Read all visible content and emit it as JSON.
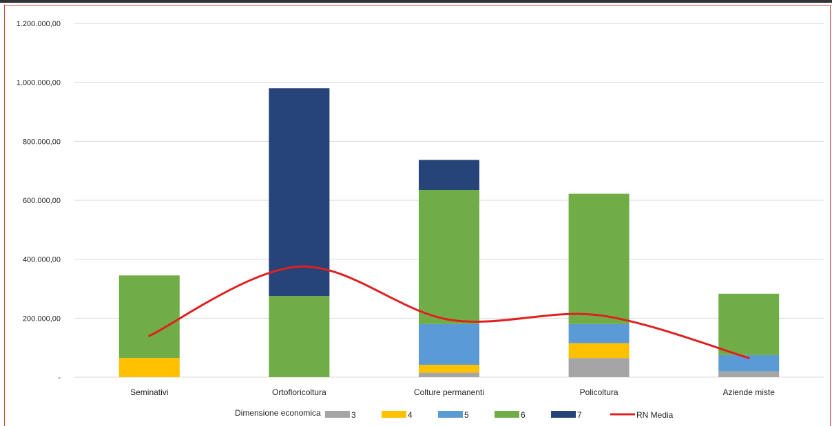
{
  "chart_data": {
    "type": "bar",
    "stacked": true,
    "categories": [
      "Seminativi",
      "Ortofloricoltura",
      "Colture permanenti",
      "Policoltura",
      "Aziende miste"
    ],
    "series": [
      {
        "name": "3",
        "color": "#a5a5a5",
        "values": [
          0,
          0,
          15000,
          65000,
          20000
        ]
      },
      {
        "name": "4",
        "color": "#ffc000",
        "values": [
          65000,
          0,
          27000,
          50000,
          0
        ]
      },
      {
        "name": "5",
        "color": "#5b9bd5",
        "values": [
          0,
          0,
          138000,
          65000,
          55000
        ]
      },
      {
        "name": "6",
        "color": "#70ad47",
        "values": [
          280000,
          275000,
          455000,
          442000,
          208000
        ]
      },
      {
        "name": "7",
        "color": "#264478",
        "values": [
          0,
          705000,
          102000,
          0,
          0
        ]
      }
    ],
    "line_series": {
      "name": "RN Media",
      "color": "#e02020",
      "values": [
        140000,
        375000,
        195000,
        210000,
        65000
      ]
    },
    "legend_title": "Dimensione economica",
    "ylim": [
      0,
      1200000
    ],
    "yticks": [
      0,
      200000,
      400000,
      600000,
      800000,
      1000000,
      1200000
    ],
    "ytick_labels": [
      "-",
      "200.000,00",
      "400.000,00",
      "600.000,00",
      "800.000,00",
      "1.000.000,00",
      "1.200.000,00"
    ],
    "grid": true,
    "legend_position": "bottom"
  }
}
